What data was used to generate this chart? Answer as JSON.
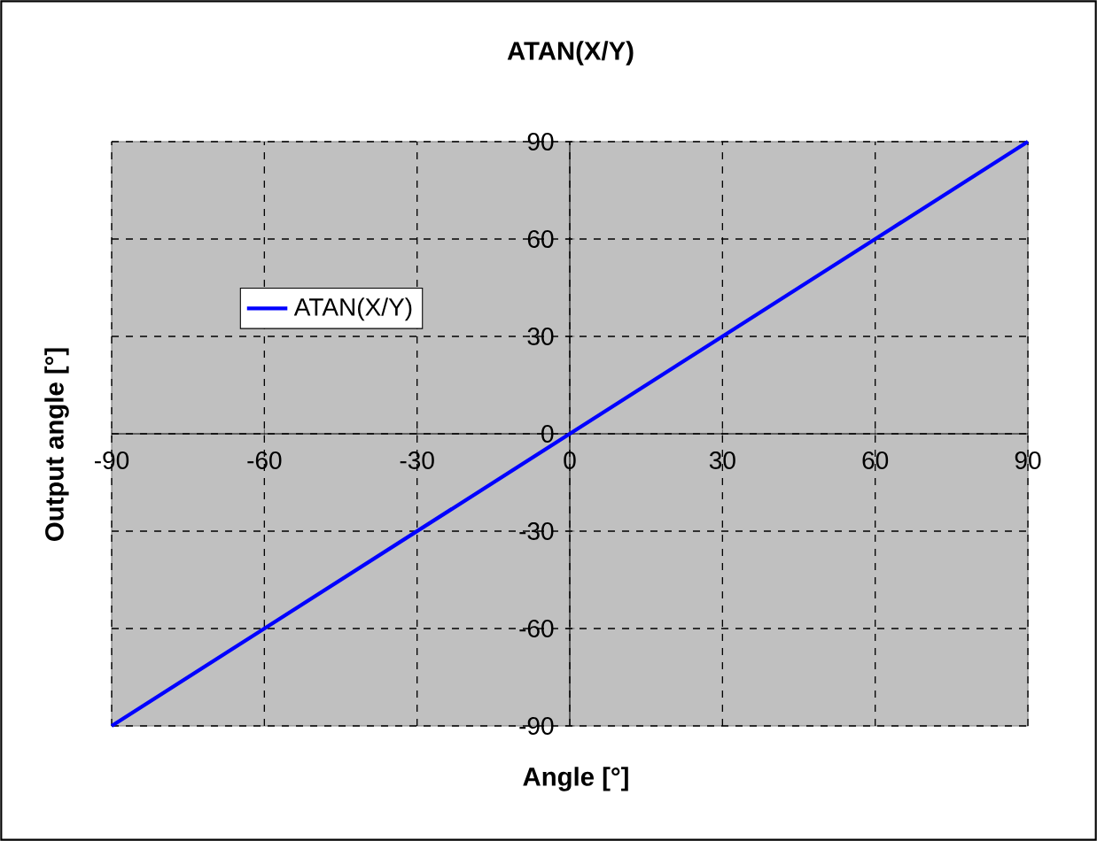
{
  "chart_data": {
    "type": "line",
    "title": "ATAN(X/Y)",
    "xlabel": "Angle  [°]",
    "ylabel": "Output angle [°]",
    "x": [
      -90,
      -60,
      -30,
      0,
      30,
      60,
      90
    ],
    "series": [
      {
        "name": "ATAN(X/Y)",
        "color": "#0000ff",
        "values": [
          -90,
          -60,
          -30,
          0,
          30,
          60,
          90
        ]
      }
    ],
    "xlim": [
      -90,
      90
    ],
    "ylim": [
      -90,
      90
    ],
    "xticks": [
      -90,
      -60,
      -30,
      0,
      30,
      60,
      90
    ],
    "yticks": [
      -90,
      -60,
      -30,
      0,
      30,
      60,
      90
    ],
    "grid": true,
    "legend": "left",
    "marker": "none",
    "line_style": "solid"
  }
}
